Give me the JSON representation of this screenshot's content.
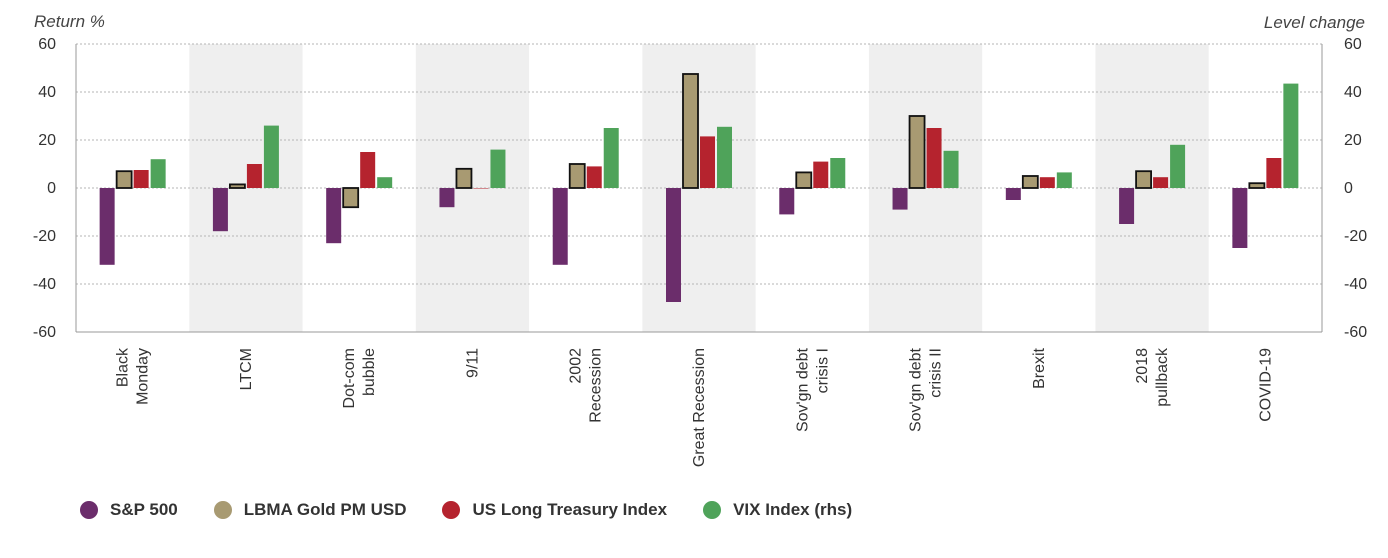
{
  "chart_data": {
    "type": "bar",
    "left_axis_label": "Return %",
    "right_axis_label": "Level change",
    "ylim": [
      -60,
      60
    ],
    "y2lim": [
      -60,
      60
    ],
    "yticks": [
      -60,
      -40,
      -20,
      0,
      20,
      40,
      60
    ],
    "grid": true,
    "legend_position": "bottom",
    "categories": [
      [
        "Black",
        "Monday"
      ],
      [
        "LTCM"
      ],
      [
        "Dot-com",
        "bubble"
      ],
      [
        "9/11"
      ],
      [
        "2002",
        "Recession"
      ],
      [
        "Great Recession"
      ],
      [
        "Sov'gn debt",
        "crisis I"
      ],
      [
        "Sov'gn debt",
        "crisis II"
      ],
      [
        "Brexit"
      ],
      [
        "2018",
        "pullback"
      ],
      [
        "COVID-19"
      ]
    ],
    "series": [
      {
        "name": "S&P 500",
        "color": "#6b2d6b",
        "axis": "left",
        "values": [
          -32,
          -18,
          -23,
          -8,
          -32,
          -47.5,
          -11,
          -9,
          -5,
          -15,
          -25
        ]
      },
      {
        "name": "LBMA Gold PM USD",
        "color": "#a89a72",
        "axis": "left",
        "outlined": true,
        "values": [
          7,
          1.5,
          -8,
          8,
          10,
          47.5,
          6.5,
          30,
          5,
          7,
          2
        ]
      },
      {
        "name": "US Long Treasury Index",
        "color": "#b5232e",
        "axis": "left",
        "values": [
          7.5,
          10,
          15,
          0,
          9,
          21.5,
          11,
          25,
          4.5,
          4.5,
          12.5
        ]
      },
      {
        "name": "VIX Index (rhs)",
        "color": "#4fa35a",
        "axis": "right",
        "values": [
          12,
          26,
          4.5,
          16,
          25,
          25.5,
          12.5,
          15.5,
          6.5,
          18,
          43.5
        ]
      }
    ]
  }
}
